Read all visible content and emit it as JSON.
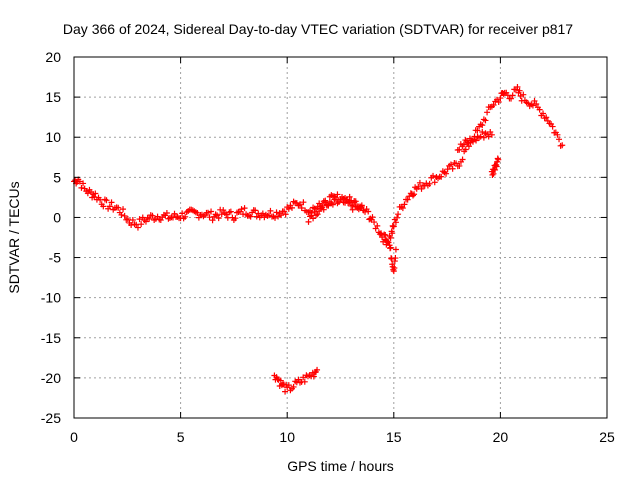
{
  "chart_data": {
    "type": "scatter",
    "title": "Day 366 of 2024, Sidereal Day-to-day VTEC variation (SDTVAR) for receiver p817",
    "xlabel": "GPS time / hours",
    "ylabel": "SDTVAR / TECUs",
    "xlim": [
      0,
      25
    ],
    "ylim": [
      -25,
      20
    ],
    "xticks": [
      0,
      5,
      10,
      15,
      20,
      25
    ],
    "yticks": [
      -25,
      -20,
      -15,
      -10,
      -5,
      0,
      5,
      10,
      15,
      20
    ],
    "grid": true,
    "marker": "+",
    "marker_color": "#ff0000",
    "series": [
      {
        "name": "main-trace",
        "x": [
          0.0,
          0.2,
          0.5,
          0.8,
          1.0,
          1.3,
          1.6,
          2.0,
          2.3,
          2.6,
          3.0,
          3.3,
          3.6,
          4.0,
          4.5,
          5.0,
          5.5,
          6.0,
          6.5,
          7.0,
          7.5,
          8.0,
          8.5,
          9.0,
          9.5,
          10.0,
          10.3,
          10.6,
          11.0,
          11.5,
          12.0,
          12.5,
          13.0,
          13.5,
          13.8,
          14.0,
          14.3,
          14.5,
          14.7,
          14.9,
          15.0,
          15.2,
          15.5,
          15.8,
          16.0,
          16.3,
          16.6,
          17.0,
          17.3,
          17.6,
          18.0,
          18.3,
          18.6,
          19.0,
          19.3,
          19.6,
          20.0,
          20.2,
          20.5,
          20.8,
          21.0,
          21.3,
          21.6,
          22.0,
          22.3,
          22.6,
          22.9
        ],
        "y": [
          4.5,
          4.8,
          3.5,
          3.0,
          2.8,
          2.0,
          1.5,
          1.2,
          0.5,
          -0.5,
          -0.8,
          -0.3,
          0.0,
          0.2,
          0.0,
          0.2,
          0.5,
          0.5,
          0.2,
          0.5,
          0.2,
          0.8,
          0.5,
          0.5,
          0.5,
          1.0,
          1.5,
          1.8,
          1.0,
          1.3,
          1.5,
          2.0,
          1.5,
          1.0,
          0.5,
          -0.5,
          -1.5,
          -2.5,
          -3.0,
          -2.0,
          -1.0,
          0.5,
          2.0,
          3.0,
          3.5,
          4.0,
          4.5,
          5.0,
          5.5,
          6.0,
          6.5,
          8.0,
          9.5,
          11.0,
          12.5,
          14.0,
          15.0,
          15.5,
          15.2,
          15.8,
          15.0,
          14.5,
          14.0,
          13.0,
          12.0,
          10.5,
          9.0
        ]
      },
      {
        "name": "secondary-trace",
        "x": [
          11.0,
          11.5,
          12.0,
          12.5,
          13.0,
          13.5
        ],
        "y": [
          0.0,
          1.0,
          2.2,
          2.5,
          2.0,
          1.5
        ]
      },
      {
        "name": "dip-trace",
        "x": [
          14.6,
          14.8,
          14.9,
          15.0,
          15.1
        ],
        "y": [
          -2.0,
          -3.5,
          -5.0,
          -6.5,
          -4.0
        ]
      },
      {
        "name": "upper-trace",
        "x": [
          18.0,
          18.5,
          19.0,
          19.3,
          19.6
        ],
        "y": [
          8.5,
          9.5,
          10.0,
          10.5,
          10.3
        ]
      },
      {
        "name": "fragment-trace",
        "x": [
          19.6,
          19.7,
          19.8,
          19.9
        ],
        "y": [
          5.5,
          6.0,
          6.8,
          7.2
        ]
      },
      {
        "name": "outlier-trace",
        "x": [
          9.4,
          9.6,
          9.8,
          10.0,
          10.3,
          10.6,
          10.9,
          11.2,
          11.4
        ],
        "y": [
          -19.5,
          -20.3,
          -21.0,
          -21.5,
          -21.0,
          -20.5,
          -20.0,
          -19.5,
          -19.0
        ]
      }
    ]
  }
}
